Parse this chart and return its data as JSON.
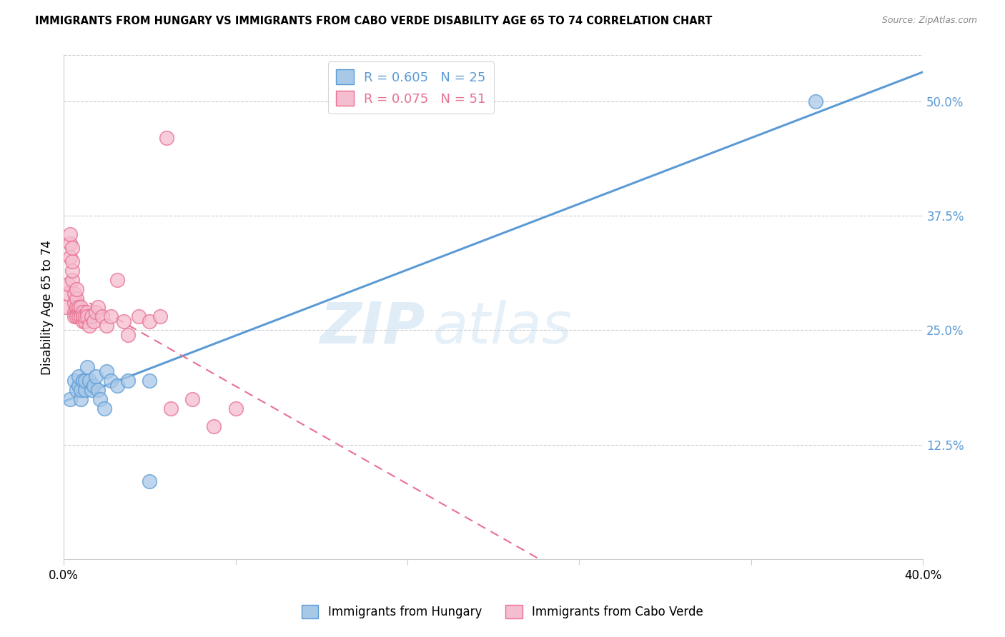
{
  "title": "IMMIGRANTS FROM HUNGARY VS IMMIGRANTS FROM CABO VERDE DISABILITY AGE 65 TO 74 CORRELATION CHART",
  "source": "Source: ZipAtlas.com",
  "ylabel": "Disability Age 65 to 74",
  "legend_hungary": "Immigrants from Hungary",
  "legend_caboverde": "Immigrants from Cabo Verde",
  "R_hungary": 0.605,
  "N_hungary": 25,
  "R_caboverde": 0.075,
  "N_caboverde": 51,
  "xmin": 0.0,
  "xmax": 0.4,
  "ymin": 0.0,
  "ymax": 0.55,
  "right_yticks": [
    0.0,
    0.125,
    0.25,
    0.375,
    0.5
  ],
  "right_yticklabels": [
    "",
    "12.5%",
    "25.0%",
    "37.5%",
    "50.0%"
  ],
  "color_hungary_fill": "#a8c8e8",
  "color_hungary_edge": "#5b9bd5",
  "color_caboverde_fill": "#f5bdd0",
  "color_caboverde_edge": "#e87090",
  "color_hungary_line": "#5b9bd5",
  "color_caboverde_line": "#e87090",
  "color_right_axis": "#5b9bd5",
  "watermark": "ZIPatlas",
  "hungary_x": [
    0.003,
    0.005,
    0.006,
    0.007,
    0.007,
    0.008,
    0.008,
    0.009,
    0.01,
    0.01,
    0.011,
    0.012,
    0.013,
    0.014,
    0.015,
    0.016,
    0.017,
    0.019,
    0.02,
    0.022,
    0.025,
    0.03,
    0.04,
    0.35,
    0.04
  ],
  "hungary_y": [
    0.175,
    0.195,
    0.185,
    0.19,
    0.2,
    0.175,
    0.185,
    0.195,
    0.185,
    0.195,
    0.21,
    0.195,
    0.185,
    0.19,
    0.2,
    0.185,
    0.175,
    0.165,
    0.205,
    0.195,
    0.19,
    0.195,
    0.195,
    0.5,
    0.085
  ],
  "caboverde_x": [
    0.001,
    0.002,
    0.002,
    0.003,
    0.003,
    0.003,
    0.004,
    0.004,
    0.004,
    0.004,
    0.005,
    0.005,
    0.005,
    0.005,
    0.006,
    0.006,
    0.006,
    0.006,
    0.006,
    0.007,
    0.007,
    0.007,
    0.008,
    0.008,
    0.008,
    0.009,
    0.009,
    0.009,
    0.01,
    0.01,
    0.011,
    0.011,
    0.012,
    0.013,
    0.014,
    0.015,
    0.016,
    0.018,
    0.02,
    0.022,
    0.025,
    0.028,
    0.03,
    0.035,
    0.04,
    0.045,
    0.05,
    0.06,
    0.07,
    0.08,
    0.048
  ],
  "caboverde_y": [
    0.275,
    0.29,
    0.3,
    0.33,
    0.345,
    0.355,
    0.305,
    0.315,
    0.325,
    0.34,
    0.27,
    0.28,
    0.29,
    0.265,
    0.27,
    0.275,
    0.285,
    0.265,
    0.295,
    0.27,
    0.275,
    0.265,
    0.27,
    0.275,
    0.265,
    0.27,
    0.26,
    0.265,
    0.26,
    0.265,
    0.27,
    0.265,
    0.255,
    0.265,
    0.26,
    0.27,
    0.275,
    0.265,
    0.255,
    0.265,
    0.305,
    0.26,
    0.245,
    0.265,
    0.26,
    0.265,
    0.165,
    0.175,
    0.145,
    0.165,
    0.46
  ]
}
